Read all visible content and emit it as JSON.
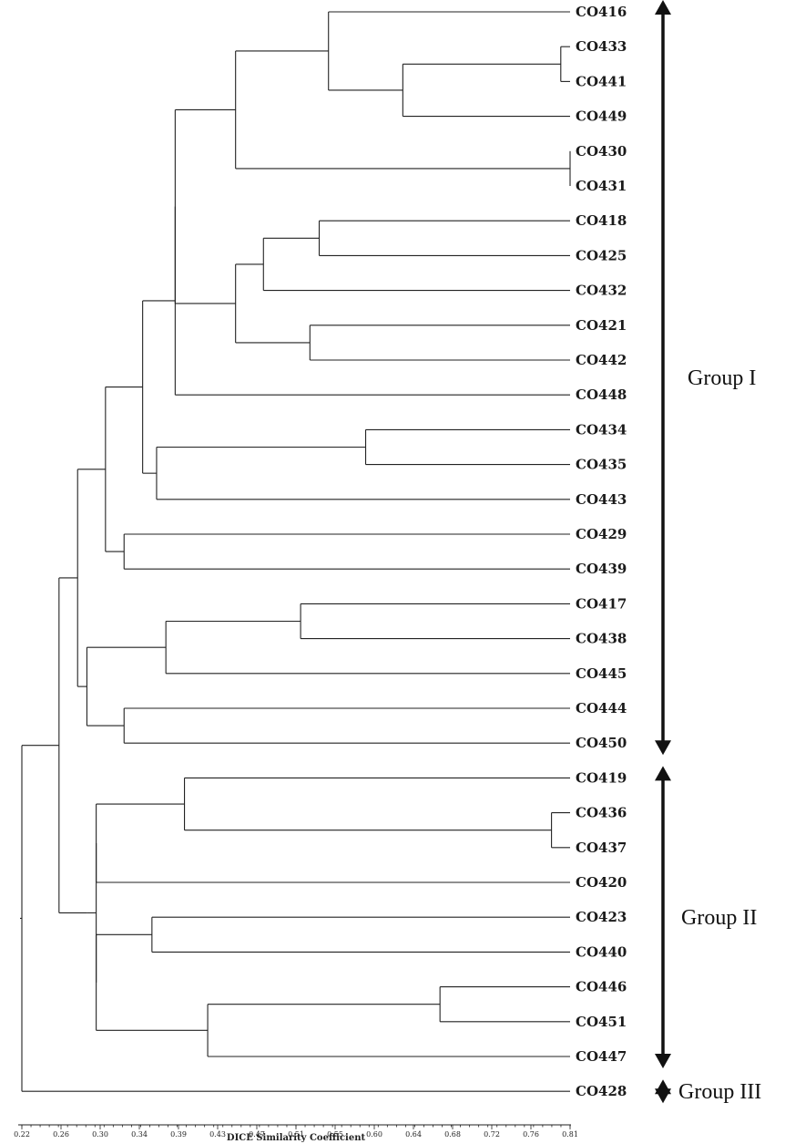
{
  "chart_data": {
    "type": "dendrogram",
    "xlabel": "DICE Similarity Coefficient",
    "xlim": [
      0.22,
      0.81
    ],
    "ticks": [
      "0.22",
      "0.26",
      "0.30",
      "0.34",
      "0.39",
      "0.43",
      "0.47",
      "0.51",
      "0.55",
      "0.60",
      "0.64",
      "0.68",
      "0.72",
      "0.76",
      "0.81"
    ],
    "leaves": [
      "CO416",
      "CO433",
      "CO441",
      "CO449",
      "CO430",
      "CO431",
      "CO418",
      "CO425",
      "CO432",
      "CO421",
      "CO442",
      "CO448",
      "CO434",
      "CO435",
      "CO443",
      "CO429",
      "CO439",
      "CO417",
      "CO438",
      "CO445",
      "CO444",
      "CO450",
      "CO419",
      "CO436",
      "CO437",
      "CO420",
      "CO423",
      "CO440",
      "CO446",
      "CO451",
      "CO447",
      "CO428"
    ],
    "tree": {
      "h": 0.22,
      "c": [
        {
          "h": 0.26,
          "c": [
            {
              "h": 0.28,
              "c": [
                {
                  "h": 0.31,
                  "c": [
                    {
                      "h": 0.35,
                      "c": [
                        {
                          "h": 0.385,
                          "c": [
                            {
                              "h": 0.385,
                              "c": [
                                {
                                  "h": 0.45,
                                  "c": [
                                    {
                                      "h": 0.55,
                                      "c": [
                                        {
                                          "l": 0
                                        },
                                        {
                                          "h": 0.63,
                                          "c": [
                                            {
                                              "h": 0.8,
                                              "c": [
                                                {
                                                  "l": 1
                                                },
                                                {
                                                  "l": 2
                                                }
                                              ]
                                            },
                                            {
                                              "l": 3
                                            }
                                          ]
                                        }
                                      ]
                                    },
                                    {
                                      "h": 0.81,
                                      "c": [
                                        {
                                          "l": 4
                                        },
                                        {
                                          "l": 5
                                        }
                                      ]
                                    }
                                  ]
                                },
                                {
                                  "h": 0.45,
                                  "c": [
                                    {
                                      "h": 0.48,
                                      "c": [
                                        {
                                          "h": 0.54,
                                          "c": [
                                            {
                                              "l": 6
                                            },
                                            {
                                              "l": 7
                                            }
                                          ]
                                        },
                                        {
                                          "l": 8
                                        }
                                      ]
                                    },
                                    {
                                      "h": 0.53,
                                      "c": [
                                        {
                                          "l": 9
                                        },
                                        {
                                          "l": 10
                                        }
                                      ]
                                    }
                                  ]
                                }
                              ]
                            },
                            {
                              "l": 11
                            }
                          ]
                        },
                        {
                          "h": 0.365,
                          "c": [
                            {
                              "h": 0.59,
                              "c": [
                                {
                                  "l": 12
                                },
                                {
                                  "l": 13
                                }
                              ]
                            },
                            {
                              "l": 14
                            }
                          ]
                        }
                      ]
                    },
                    {
                      "h": 0.33,
                      "c": [
                        {
                          "l": 15
                        },
                        {
                          "l": 16
                        }
                      ]
                    }
                  ]
                },
                {
                  "h": 0.29,
                  "c": [
                    {
                      "h": 0.375,
                      "c": [
                        {
                          "h": 0.52,
                          "c": [
                            {
                              "l": 17
                            },
                            {
                              "l": 18
                            }
                          ]
                        },
                        {
                          "l": 19
                        }
                      ]
                    },
                    {
                      "h": 0.33,
                      "c": [
                        {
                          "l": 20
                        },
                        {
                          "l": 21
                        }
                      ]
                    }
                  ]
                }
              ]
            },
            {
              "h": 0.29,
              "c": [
                {
                  "h": 0.3,
                  "c": [
                    {
                      "h": 0.3,
                      "c": [
                        {
                          "h": 0.395,
                          "c": [
                            {
                              "l": 22
                            },
                            {
                              "h": 0.79,
                              "c": [
                                {
                                  "l": 23
                                },
                                {
                                  "l": 24
                                }
                              ]
                            }
                          ]
                        },
                        {
                          "l": 25
                        }
                      ]
                    },
                    {
                      "h": 0.3,
                      "c": [
                        {
                          "h": 0.36,
                          "c": [
                            {
                              "l": 26
                            },
                            {
                              "l": 27
                            }
                          ]
                        },
                        {
                          "h": 0.42,
                          "c": [
                            {
                              "h": 0.67,
                              "c": [
                                {
                                  "l": 28
                                },
                                {
                                  "l": 29
                                }
                              ]
                            },
                            {
                              "l": 30
                            }
                          ]
                        }
                      ]
                    }
                  ]
                }
              ]
            }
          ]
        },
        {
          "l": 31
        }
      ]
    },
    "groups": [
      {
        "label": "Group I",
        "first": 0,
        "last": 21
      },
      {
        "label": "Group II",
        "first": 22,
        "last": 30
      },
      {
        "label": "Group III",
        "first": 31,
        "last": 31
      }
    ]
  }
}
